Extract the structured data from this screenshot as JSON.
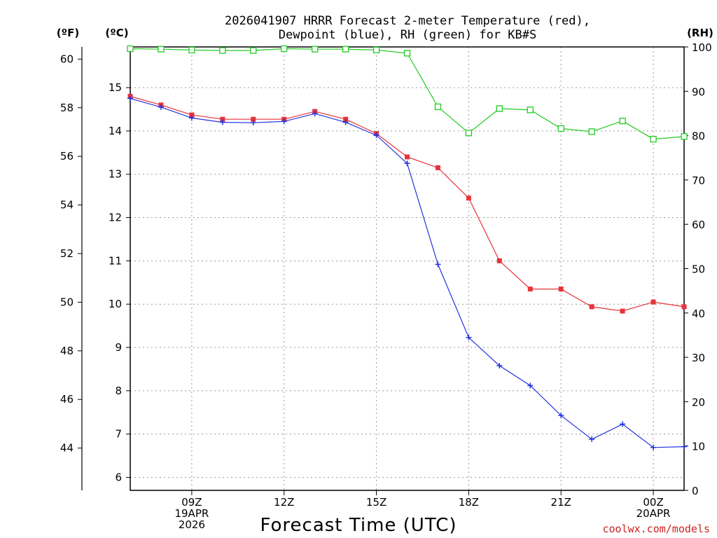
{
  "chart_data": {
    "type": "line",
    "title_lines": [
      "2026041907 HRRR Forecast 2-meter Temperature (red),",
      "Dewpoint (blue), RH (green) for KB#S"
    ],
    "units": {
      "fahrenheit": "(ºF)",
      "celsius": "(ºC)",
      "rh": "(RH)"
    },
    "xlabel": "Forecast Time (UTC)",
    "credit": "coolwx.com/models",
    "credit_color": "#cc2222",
    "x_range": [
      7,
      25
    ],
    "x_ticks": [
      {
        "x": 9,
        "lines": [
          "09Z",
          "19APR",
          "2026"
        ]
      },
      {
        "x": 12,
        "lines": [
          "12Z"
        ]
      },
      {
        "x": 15,
        "lines": [
          "15Z"
        ]
      },
      {
        "x": 18,
        "lines": [
          "18Z"
        ]
      },
      {
        "x": 21,
        "lines": [
          "21Z"
        ]
      },
      {
        "x": 24,
        "lines": [
          "00Z",
          "20APR"
        ]
      }
    ],
    "celsius_axis": {
      "range": [
        5.7,
        15.94
      ],
      "ticks": [
        6,
        7,
        8,
        9,
        10,
        11,
        12,
        13,
        14,
        15
      ]
    },
    "fahrenheit_axis": {
      "range": [
        42.26,
        60.5
      ],
      "ticks": [
        44,
        46,
        48,
        50,
        52,
        54,
        56,
        58,
        60
      ]
    },
    "rh_axis": {
      "range": [
        0,
        100
      ],
      "ticks": [
        0,
        10,
        20,
        30,
        40,
        50,
        60,
        70,
        80,
        90,
        100
      ]
    },
    "grid": true,
    "series": [
      {
        "name": "Temperature",
        "axis": "celsius",
        "color": "#e8333a",
        "marker": "filled-square",
        "x": [
          7,
          8,
          9,
          10,
          11,
          12,
          13,
          14,
          15,
          16,
          17,
          18,
          19,
          20,
          21,
          22,
          23,
          24,
          25
        ],
        "values": [
          14.8,
          14.6,
          14.37,
          14.27,
          14.27,
          14.27,
          14.45,
          14.27,
          13.94,
          13.4,
          13.15,
          12.45,
          11.0,
          10.35,
          10.35,
          9.94,
          9.84,
          10.05,
          9.94
        ]
      },
      {
        "name": "Dewpoint",
        "axis": "celsius",
        "color": "#2233dd",
        "marker": "plus",
        "x": [
          7,
          8,
          9,
          10,
          11,
          12,
          13,
          14,
          15,
          16,
          17,
          18,
          19,
          20,
          21,
          22,
          23,
          24,
          25
        ],
        "values": [
          14.75,
          14.55,
          14.3,
          14.2,
          14.19,
          14.22,
          14.4,
          14.2,
          13.9,
          13.25,
          10.92,
          9.23,
          8.58,
          8.12,
          7.43,
          6.88,
          7.23,
          6.69,
          6.71
        ]
      },
      {
        "name": "Relative Humidity",
        "axis": "rh",
        "color": "#22cc22",
        "marker": "open-square",
        "x": [
          7,
          8,
          9,
          10,
          11,
          12,
          13,
          14,
          15,
          16,
          17,
          18,
          19,
          20,
          21,
          22,
          23,
          24,
          25
        ],
        "values": [
          99.6,
          99.5,
          99.3,
          99.2,
          99.2,
          99.6,
          99.5,
          99.5,
          99.3,
          98.6,
          86.5,
          80.6,
          86.1,
          85.8,
          81.6,
          80.9,
          83.3,
          79.2,
          79.8
        ]
      }
    ]
  }
}
